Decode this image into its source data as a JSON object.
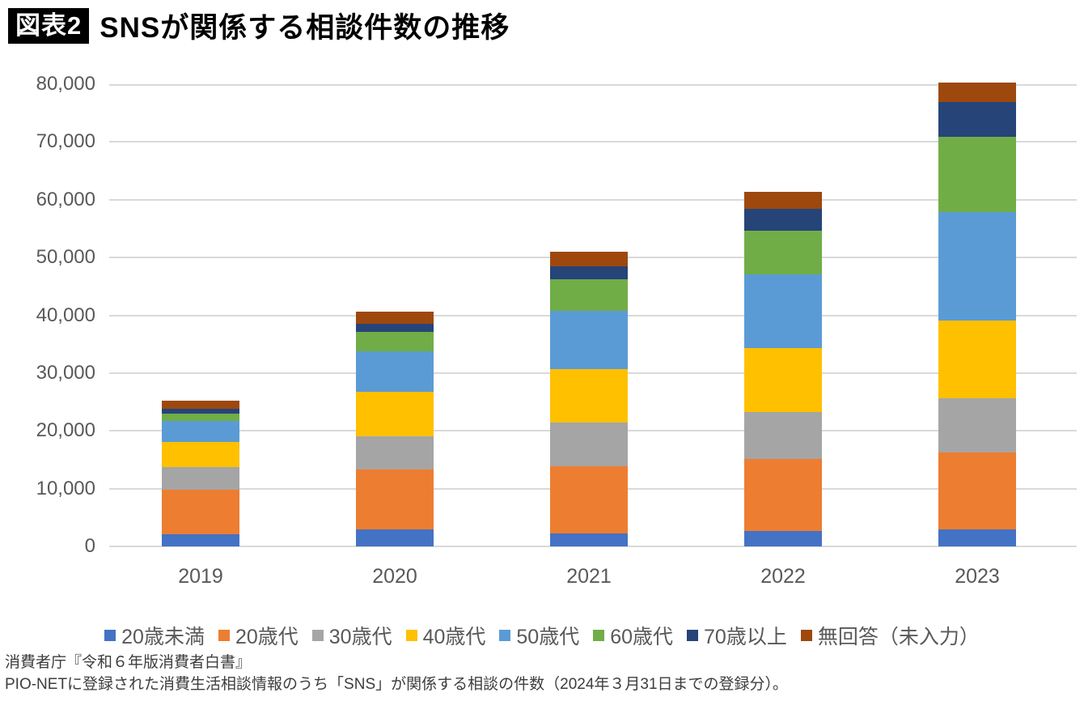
{
  "header": {
    "badge": "図表2",
    "title": "SNSが関係する相談件数の推移"
  },
  "chart_data": {
    "type": "bar",
    "stacked": true,
    "title": "SNSが関係する相談件数の推移",
    "categories": [
      "2019",
      "2020",
      "2021",
      "2022",
      "2023"
    ],
    "series": [
      {
        "name": "20歳未満",
        "color": "#4472C4",
        "values": [
          2100,
          2900,
          2200,
          2700,
          3000
        ]
      },
      {
        "name": "20歳代",
        "color": "#ED7D31",
        "values": [
          7700,
          10400,
          11700,
          12400,
          13300
        ]
      },
      {
        "name": "30歳代",
        "color": "#A5A5A5",
        "values": [
          4000,
          5800,
          7500,
          8200,
          9300
        ]
      },
      {
        "name": "40歳代",
        "color": "#FFC000",
        "values": [
          4300,
          7600,
          9300,
          11100,
          13500
        ]
      },
      {
        "name": "50歳代",
        "color": "#5B9BD5",
        "values": [
          3600,
          7100,
          10100,
          12700,
          18800
        ]
      },
      {
        "name": "60歳代",
        "color": "#70AD47",
        "values": [
          1300,
          3400,
          5400,
          7600,
          13000
        ]
      },
      {
        "name": "70歳以上",
        "color": "#264478",
        "values": [
          800,
          1400,
          2300,
          3700,
          6000
        ]
      },
      {
        "name": "無回答（未入力）",
        "color": "#9E480E",
        "values": [
          1400,
          2000,
          2500,
          3000,
          3400
        ]
      }
    ],
    "totals_estimated": [
      25200,
      40600,
      51000,
      61400,
      80300
    ],
    "xlabel": "",
    "ylabel": "",
    "ylim": [
      0,
      80000
    ],
    "ytick_interval": 10000,
    "ytick_labels": [
      "0",
      "10,000",
      "20,000",
      "30,000",
      "40,000",
      "50,000",
      "60,000",
      "70,000",
      "80,000"
    ],
    "grid": true,
    "legend_position": "bottom"
  },
  "colors": {
    "axis_text": "#595959",
    "gridline": "#D9D9D9",
    "badge_bg": "#000000",
    "badge_fg": "#FFFFFF"
  },
  "footer": {
    "line1": "消費者庁『令和６年版消費者白書』",
    "line2": "PIO-NETに登録された消費生活相談情報のうち「SNS」が関係する相談の件数（2024年３月31日までの登録分）。"
  }
}
